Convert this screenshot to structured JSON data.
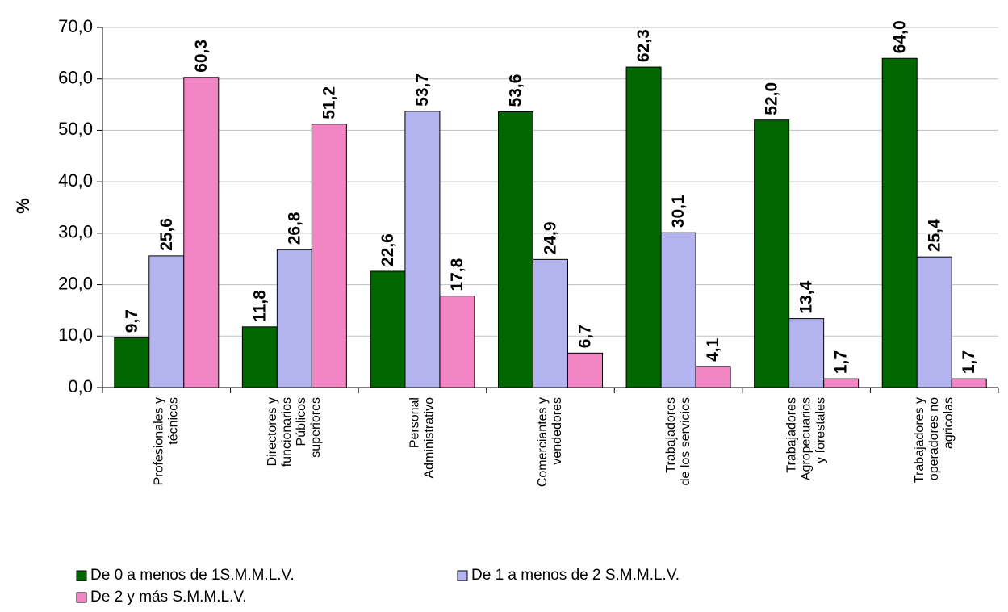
{
  "chart_data": {
    "type": "bar",
    "y_label": "%",
    "categories": [
      [
        "Profesionales y",
        "técnicos"
      ],
      [
        "Directores y",
        "funcionarios",
        "Públicos",
        "superiores"
      ],
      [
        "Personal",
        "Administrativo"
      ],
      [
        "Comerciantes y",
        "vendedores"
      ],
      [
        "Trabajadores",
        "de los servicios"
      ],
      [
        "Trabajadores",
        "Agropecuarios",
        "y forestales"
      ],
      [
        "Trabajadores y",
        "operadores no",
        "agricolas"
      ]
    ],
    "series": [
      {
        "name": "De 0 a menos de 1S.M.M.L.V.",
        "color": "#006600",
        "values": [
          9.7,
          11.8,
          22.6,
          53.6,
          62.3,
          52.0,
          64.0
        ],
        "value_labels": [
          "9,7",
          "11,8",
          "22,6",
          "53,6",
          "62,3",
          "52,0",
          "64,0"
        ]
      },
      {
        "name": "De 1 a menos de 2 S.M.M.L.V.",
        "color": "#b3b3f0",
        "values": [
          25.6,
          26.8,
          53.7,
          24.9,
          30.1,
          13.4,
          25.4
        ],
        "value_labels": [
          "25,6",
          "26,8",
          "53,7",
          "24,9",
          "30,1",
          "13,4",
          "25,4"
        ]
      },
      {
        "name": "De 2 y más S.M.M.L.V.",
        "color": "#f285c4",
        "values": [
          60.3,
          51.2,
          17.8,
          6.7,
          4.1,
          1.7,
          1.7
        ],
        "value_labels": [
          "60,3",
          "51,2",
          "17,8",
          "6,7",
          "4,1",
          "1,7",
          "1,7"
        ]
      }
    ],
    "ylim": [
      0,
      70
    ],
    "yticks": [
      {
        "value": 0,
        "label": "0,0"
      },
      {
        "value": 10,
        "label": "10,0"
      },
      {
        "value": 20,
        "label": "20,0"
      },
      {
        "value": 30,
        "label": "30,0"
      },
      {
        "value": 40,
        "label": "40,0"
      },
      {
        "value": 50,
        "label": "50,0"
      },
      {
        "value": 60,
        "label": "60,0"
      },
      {
        "value": 70,
        "label": "70,0"
      }
    ],
    "grid": true,
    "legend": "bottom"
  }
}
